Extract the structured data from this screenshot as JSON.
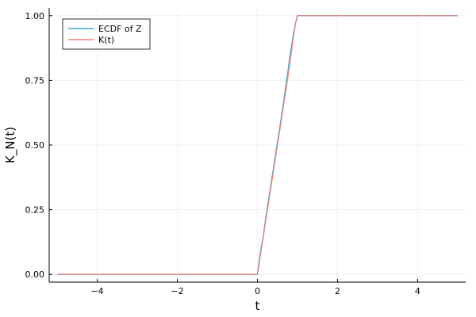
{
  "chart_data": {
    "type": "line",
    "xlabel": "t",
    "ylabel": "K_N(t)",
    "xlim": [
      -5.2,
      5.2
    ],
    "ylim": [
      -0.03,
      1.03
    ],
    "xticks": [
      -4,
      -2,
      0,
      2,
      4
    ],
    "xtick_labels": [
      "−4",
      "−2",
      "0",
      "2",
      "4"
    ],
    "yticks": [
      0,
      0.25,
      0.5,
      0.75,
      1.0
    ],
    "ytick_labels": [
      "0.00",
      "0.25",
      "0.50",
      "0.75",
      "1.00"
    ],
    "grid": true,
    "legend_position": "top-left",
    "series": [
      {
        "name": "ECDF of Z",
        "color": "#3aa7d8",
        "x": [
          -5,
          0,
          0.05,
          0.1,
          0.15,
          0.2,
          0.25,
          0.3,
          0.35,
          0.4,
          0.45,
          0.5,
          0.55,
          0.6,
          0.65,
          0.7,
          0.75,
          0.8,
          0.85,
          0.9,
          0.95,
          1.0,
          5
        ],
        "y": [
          0,
          0,
          0.06,
          0.11,
          0.15,
          0.21,
          0.26,
          0.31,
          0.36,
          0.41,
          0.46,
          0.51,
          0.56,
          0.61,
          0.66,
          0.72,
          0.77,
          0.83,
          0.88,
          0.93,
          0.97,
          1.0,
          1.0
        ]
      },
      {
        "name": "K(t)",
        "color": "#f08070",
        "x": [
          -5,
          0,
          0.25,
          0.5,
          0.75,
          0.85,
          0.9,
          0.95,
          1.0,
          5
        ],
        "y": [
          0,
          0,
          0.25,
          0.5,
          0.75,
          0.86,
          0.92,
          0.97,
          1.0,
          1.0
        ]
      }
    ]
  }
}
